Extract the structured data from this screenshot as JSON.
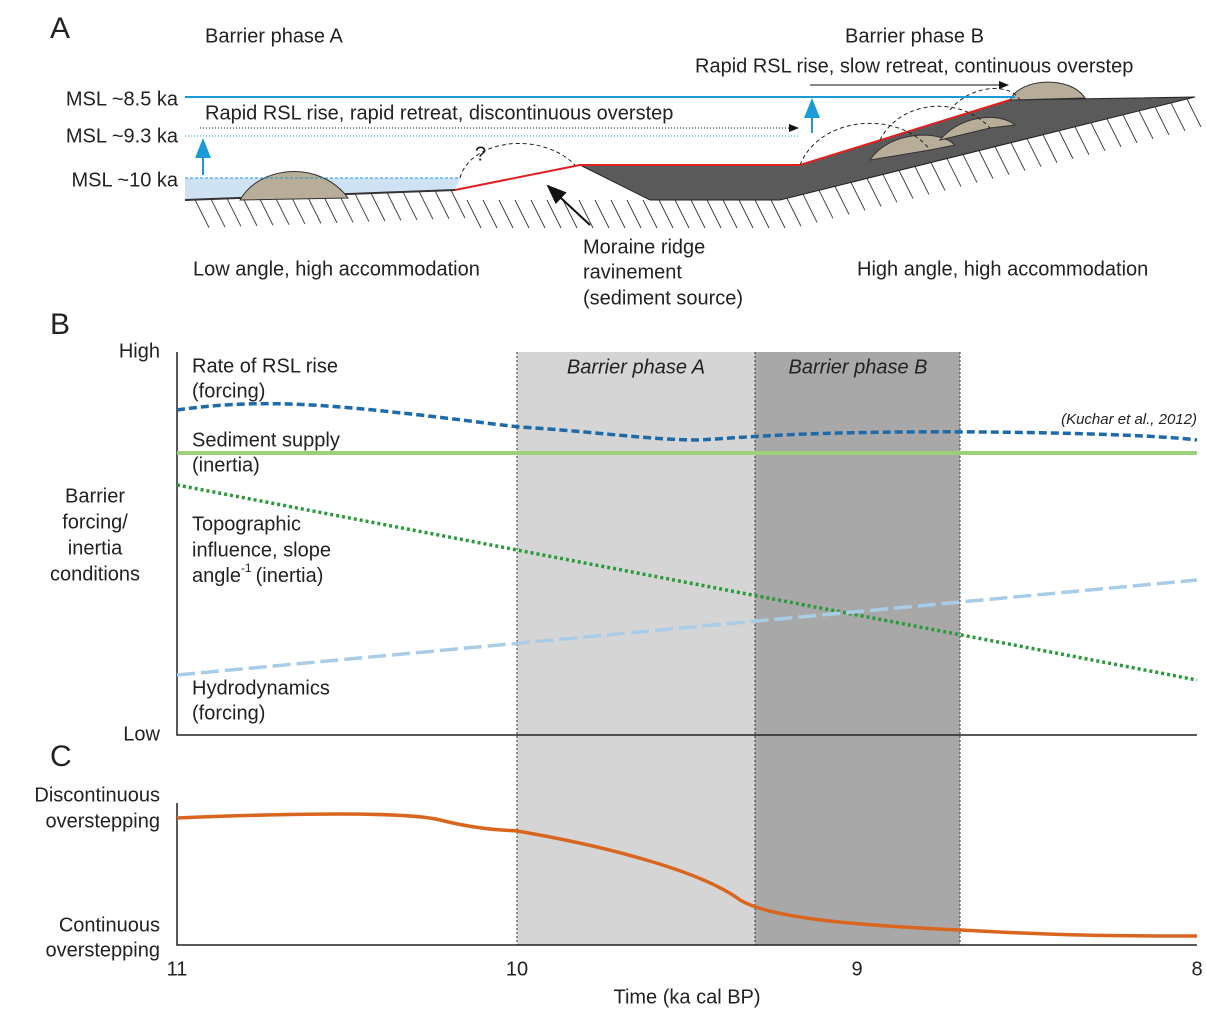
{
  "panel_a": {
    "label": "A",
    "phase_a": "Barrier phase A",
    "phase_b": "Barrier phase B",
    "phase_b_note": "Rapid RSL rise, slow retreat, continuous overstep",
    "phase_a_note": "Rapid RSL rise, rapid retreat, discontinuous overstep",
    "sea_levels": [
      "MSL ~8.5 ka",
      "MSL ~9.3 ka",
      "MSL ~10 ka"
    ],
    "query": "?",
    "moraine": [
      "Moraine ridge",
      "ravinement",
      "(sediment source)"
    ],
    "left_setting": "Low angle, high accommodation",
    "right_setting": "High angle, high accommodation"
  },
  "panel_b": {
    "label": "B",
    "y_high": "High",
    "y_low": "Low",
    "y_title": [
      "Barrier",
      "forcing/",
      "inertia",
      "conditions"
    ],
    "phases": [
      "Barrier phase A",
      "Barrier phase B"
    ],
    "rsl": [
      "Rate of RSL rise",
      "(forcing)"
    ],
    "citation": "(Kuchar et al., 2012)",
    "supply": [
      "Sediment supply",
      "(inertia)"
    ],
    "topo": [
      "Topographic",
      "influence, slope",
      "angle",
      "-1",
      "(inertia)"
    ],
    "hydro": [
      "Hydrodynamics",
      "(forcing)"
    ]
  },
  "panel_c": {
    "label": "C",
    "top": [
      "Discontinuous",
      "overstepping"
    ],
    "bottom": [
      "Continuous",
      "overstepping"
    ]
  },
  "x_axis": {
    "ticks": [
      11,
      10,
      9,
      8
    ],
    "title": "Time (ka cal BP)"
  }
}
